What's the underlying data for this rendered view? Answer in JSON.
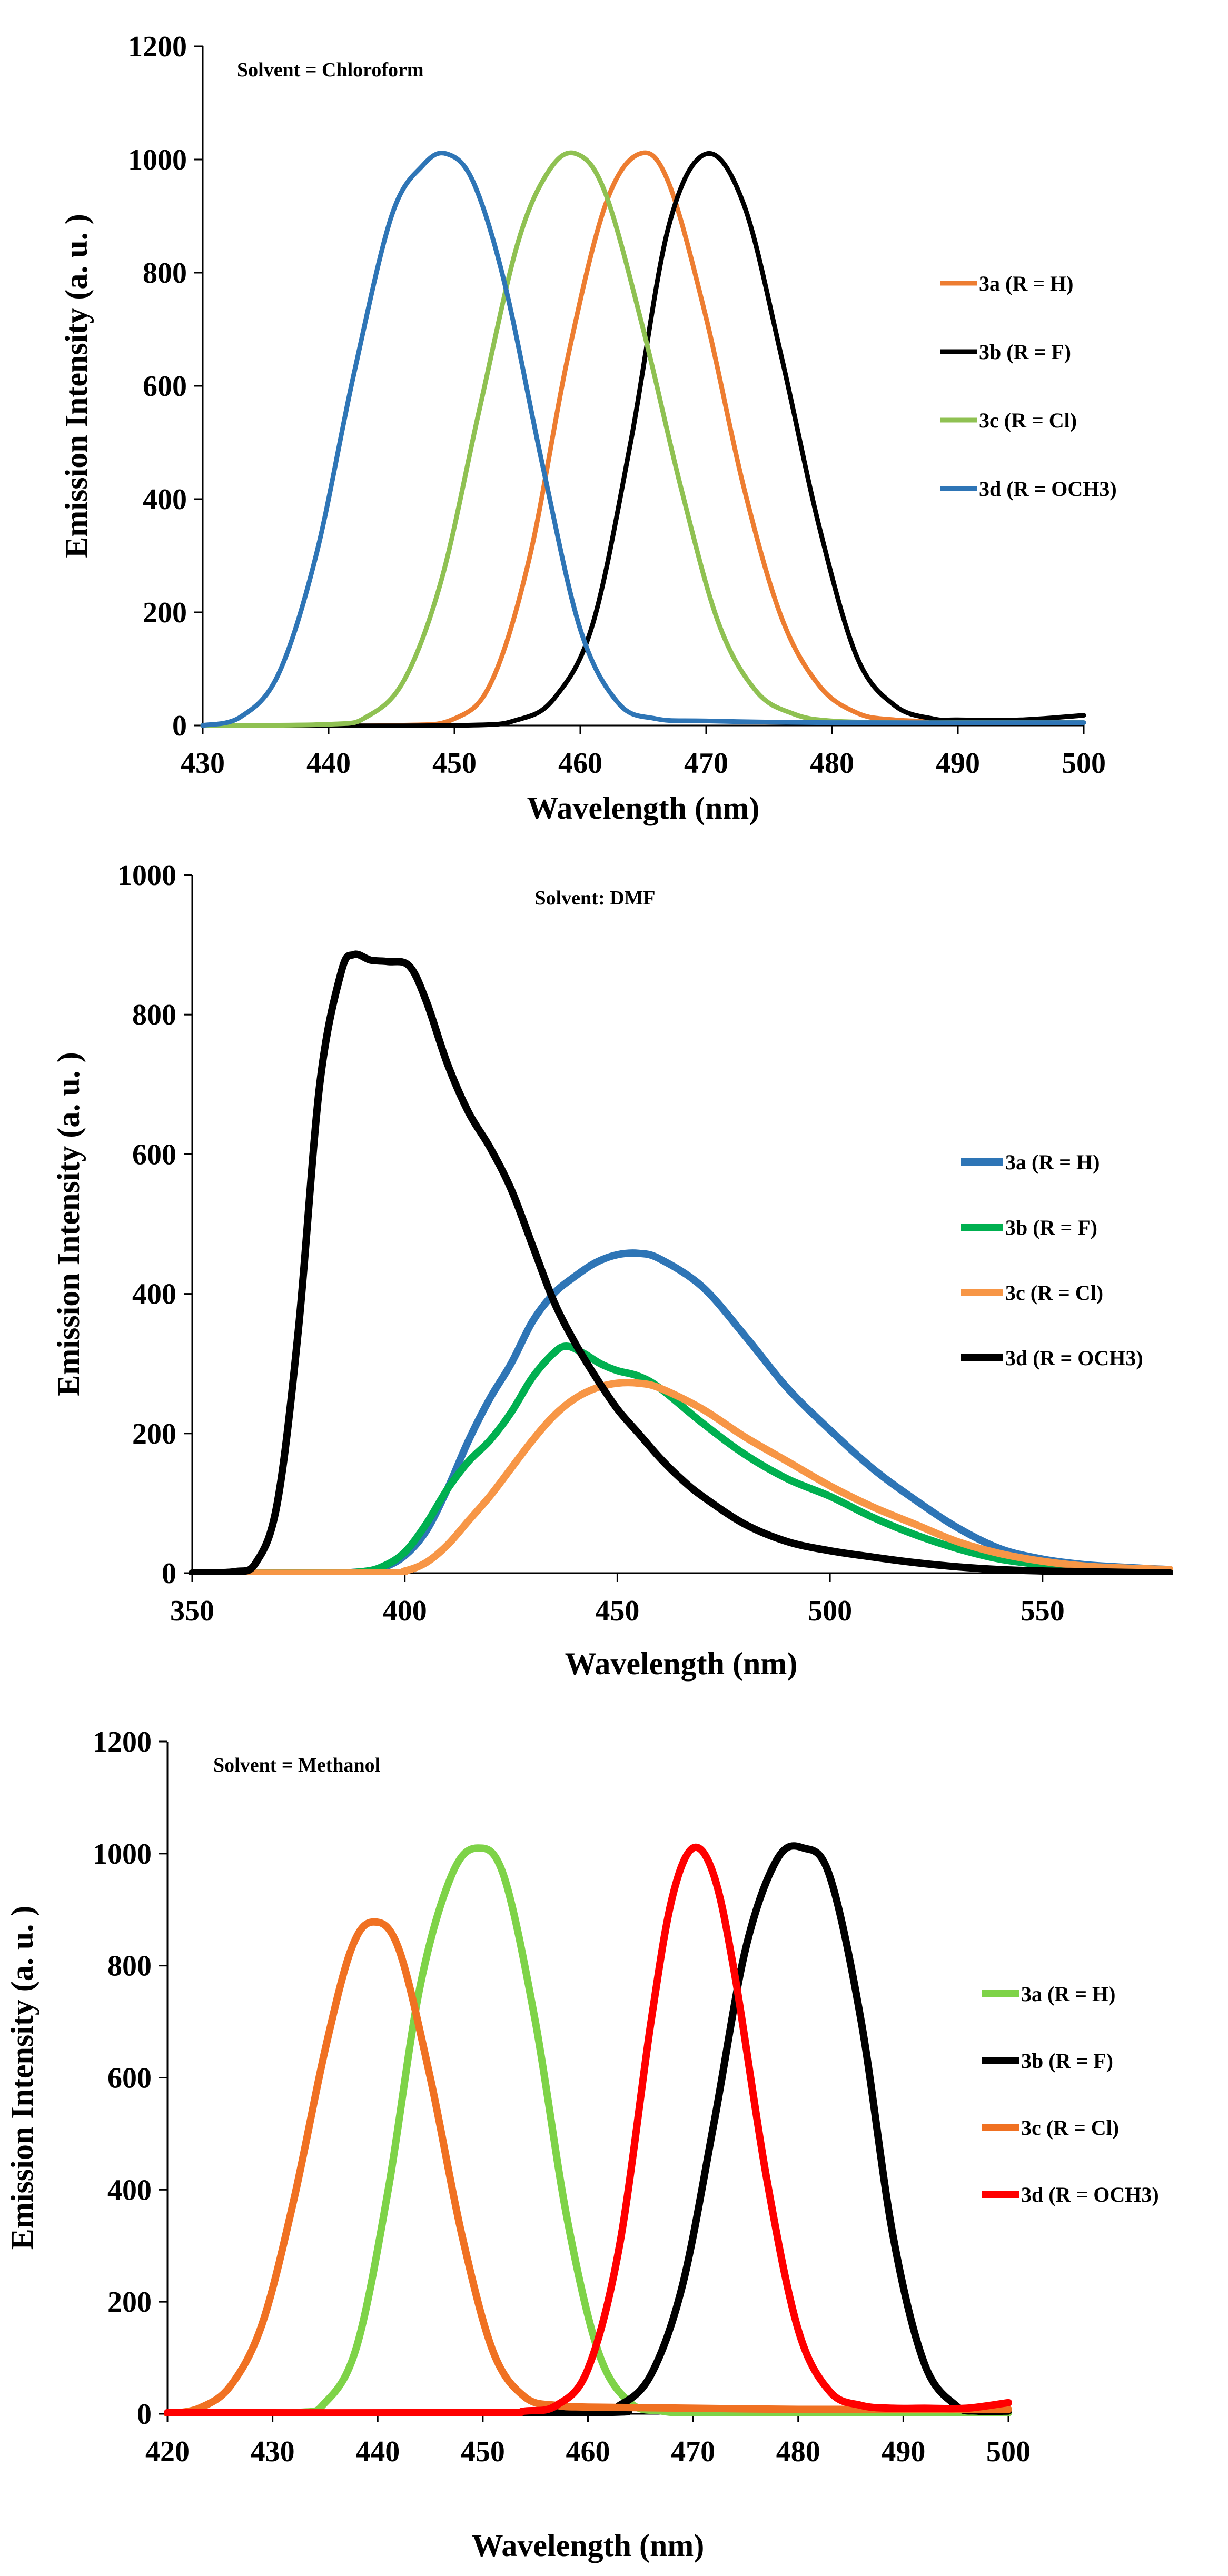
{
  "chart_data": [
    {
      "type": "line",
      "title": "Solvent = Chloroform",
      "xlabel": "Wavelength (nm)",
      "ylabel": "Emission Intensity (a. u. )",
      "xlim": [
        430,
        500
      ],
      "ylim": [
        0,
        1200
      ],
      "xticks": [
        430,
        440,
        450,
        460,
        470,
        480,
        490,
        500
      ],
      "yticks": [
        0,
        200,
        400,
        600,
        800,
        1000,
        1200
      ],
      "legend": "right",
      "series": [
        {
          "name": "3a (R = H)",
          "color": "#ED7D31",
          "x": [
            430,
            445,
            450,
            453,
            456,
            459,
            462,
            464.7,
            467,
            470,
            473,
            476,
            479,
            482,
            485,
            490,
            495,
            500
          ],
          "y": [
            0,
            0,
            12,
            80,
            300,
            650,
            920,
            1010,
            960,
            720,
            420,
            190,
            70,
            22,
            10,
            6,
            5,
            5
          ]
        },
        {
          "name": "3b (R = F)",
          "color": "#000000",
          "x": [
            430,
            450,
            455,
            458,
            461,
            464,
            467,
            470,
            473,
            476,
            479,
            482,
            485,
            488,
            490,
            495,
            500
          ],
          "y": [
            0,
            0,
            10,
            50,
            180,
            500,
            880,
            1010,
            920,
            650,
            350,
            120,
            35,
            12,
            10,
            10,
            18
          ]
        },
        {
          "name": "3c (R = Cl)",
          "color": "#8FC152",
          "x": [
            430,
            440,
            443,
            446,
            449,
            452,
            455,
            457.5,
            459.7,
            462,
            465,
            468,
            471,
            474,
            477,
            480,
            485,
            490,
            500
          ],
          "y": [
            0,
            2,
            15,
            80,
            260,
            560,
            850,
            980,
            1010,
            940,
            700,
            420,
            180,
            60,
            20,
            8,
            5,
            5,
            5
          ]
        },
        {
          "name": "3d (R = OCH3)",
          "color": "#2E75B6",
          "x": [
            430,
            433,
            436,
            439,
            442,
            445,
            447.5,
            449.4,
            451.5,
            454,
            457,
            460,
            463,
            466,
            470,
            480,
            500
          ],
          "y": [
            0,
            15,
            90,
            300,
            620,
            900,
            990,
            1010,
            960,
            780,
            460,
            170,
            40,
            12,
            8,
            5,
            5
          ]
        }
      ]
    },
    {
      "type": "line",
      "title": "Solvent: DMF",
      "xlabel": "Wavelength (nm)",
      "ylabel": "Emission Intensity (a. u. )",
      "xlim": [
        350,
        580
      ],
      "ylim": [
        0,
        1000
      ],
      "xticks": [
        350,
        400,
        450,
        500,
        550
      ],
      "yticks": [
        0,
        200,
        400,
        600,
        800,
        1000
      ],
      "legend": "right",
      "series": [
        {
          "name": "3a (R = H)",
          "color": "#2E75B6",
          "x": [
            350,
            380,
            390,
            395,
            400,
            405,
            410,
            415,
            420,
            425,
            430,
            435,
            440,
            445,
            450,
            455,
            460,
            470,
            480,
            490,
            500,
            510,
            520,
            530,
            540,
            550,
            560,
            570,
            580
          ],
          "y": [
            0,
            0,
            2,
            8,
            25,
            60,
            120,
            190,
            250,
            300,
            360,
            400,
            425,
            445,
            456,
            458,
            450,
            410,
            340,
            265,
            205,
            150,
            105,
            65,
            35,
            20,
            12,
            8,
            5
          ]
        },
        {
          "name": "3b (R = F)",
          "color": "#00B050",
          "x": [
            350,
            380,
            390,
            395,
            400,
            405,
            410,
            415,
            420,
            425,
            430,
            435,
            438,
            442,
            446,
            450,
            455,
            460,
            470,
            480,
            490,
            500,
            510,
            520,
            530,
            540,
            550,
            560,
            570,
            580
          ],
          "y": [
            0,
            0,
            2,
            10,
            30,
            70,
            120,
            160,
            190,
            230,
            280,
            315,
            325,
            315,
            300,
            290,
            282,
            265,
            215,
            170,
            135,
            110,
            80,
            55,
            35,
            20,
            12,
            8,
            5,
            3
          ]
        },
        {
          "name": "3c (R = Cl)",
          "color": "#F79646",
          "x": [
            350,
            395,
            400,
            405,
            410,
            415,
            420,
            425,
            430,
            435,
            440,
            445,
            450,
            455,
            460,
            470,
            480,
            490,
            500,
            510,
            520,
            530,
            540,
            550,
            560,
            570,
            580
          ],
          "y": [
            0,
            0,
            3,
            15,
            40,
            75,
            110,
            150,
            190,
            225,
            250,
            265,
            272,
            272,
            265,
            235,
            195,
            160,
            125,
            95,
            70,
            45,
            28,
            17,
            10,
            7,
            5
          ]
        },
        {
          "name": "3d (R = OCH3)",
          "color": "#000000",
          "x": [
            350,
            360,
            365,
            370,
            375,
            380,
            385,
            388,
            392,
            396,
            401,
            405,
            410,
            415,
            420,
            425,
            430,
            435,
            440,
            445,
            450,
            455,
            460,
            465,
            470,
            480,
            490,
            500,
            510,
            520,
            530,
            540,
            550,
            560,
            580
          ],
          "y": [
            0,
            2,
            15,
            100,
            350,
            700,
            860,
            886,
            878,
            876,
            870,
            820,
            730,
            660,
            610,
            550,
            470,
            390,
            330,
            280,
            235,
            200,
            165,
            135,
            110,
            70,
            45,
            32,
            23,
            15,
            9,
            5,
            3,
            2,
            0
          ]
        }
      ]
    },
    {
      "type": "line",
      "title": "Solvent = Methanol",
      "xlabel": "Wavelength (nm)",
      "ylabel": "Emission Intensity (a. u. )",
      "xlim": [
        420,
        500
      ],
      "ylim": [
        0,
        1200
      ],
      "xticks": [
        420,
        430,
        440,
        450,
        460,
        470,
        480,
        490,
        500
      ],
      "yticks": [
        0,
        200,
        400,
        600,
        800,
        1000,
        1200
      ],
      "legend": "right",
      "series": [
        {
          "name": "3a (R = H)",
          "color": "#7ED348",
          "x": [
            420,
            432,
            435,
            438,
            441,
            444,
            447,
            449.5,
            452,
            455,
            458,
            461,
            464,
            467,
            470,
            480,
            490,
            500
          ],
          "y": [
            0,
            2,
            20,
            120,
            400,
            760,
            960,
            1010,
            960,
            700,
            350,
            110,
            20,
            5,
            2,
            2,
            2,
            2
          ]
        },
        {
          "name": "3b (R = F)",
          "color": "#000000",
          "x": [
            420,
            460,
            463,
            466,
            469,
            472,
            475,
            478,
            480.5,
            483,
            486,
            489,
            492,
            495,
            497,
            500
          ],
          "y": [
            2,
            2,
            15,
            70,
            230,
            520,
            830,
            990,
            1010,
            960,
            700,
            320,
            90,
            15,
            5,
            5
          ]
        },
        {
          "name": "3c (R = Cl)",
          "color": "#F07122",
          "x": [
            420,
            423,
            426,
            429,
            432,
            435,
            437.5,
            439.6,
            442,
            445,
            448,
            451,
            454,
            457,
            460,
            470,
            480,
            490,
            500
          ],
          "y": [
            0,
            10,
            50,
            160,
            380,
            650,
            830,
            878,
            830,
            600,
            320,
            110,
            30,
            15,
            12,
            10,
            8,
            8,
            8
          ]
        },
        {
          "name": "3d (R = OCH3)",
          "color": "#FF0000",
          "x": [
            420,
            450,
            454,
            457,
            460,
            463,
            466,
            468,
            470,
            472,
            474,
            477,
            480,
            483,
            486,
            489,
            492,
            496,
            500
          ],
          "y": [
            2,
            2,
            5,
            15,
            80,
            300,
            700,
            920,
            1010,
            960,
            780,
            420,
            150,
            40,
            15,
            10,
            10,
            10,
            20
          ]
        }
      ]
    }
  ]
}
